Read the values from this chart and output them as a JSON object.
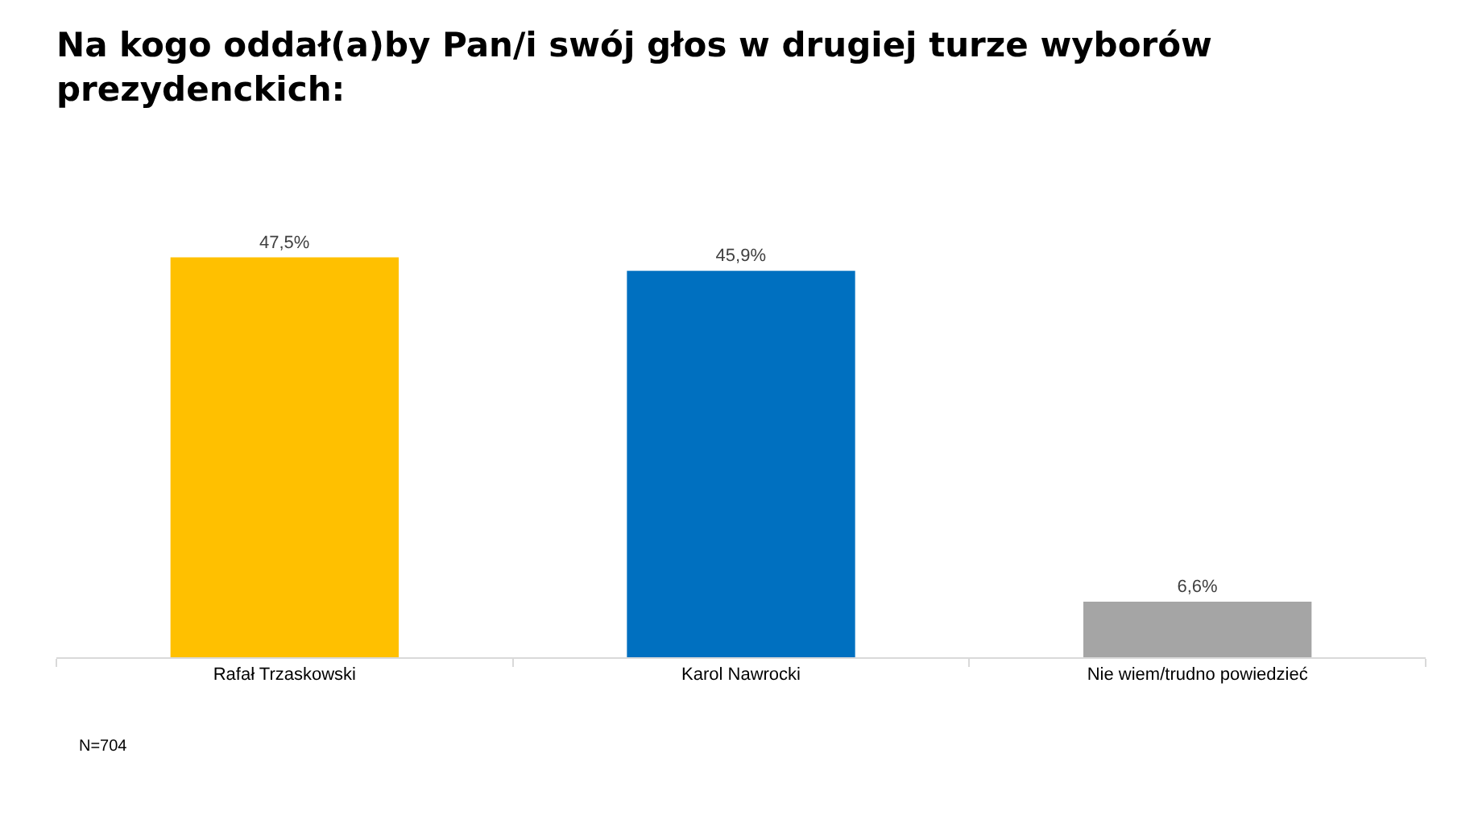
{
  "chart_data": {
    "type": "bar",
    "title": "Na kogo oddał(a)by Pan/i swój głos w drugiej turze wyborów prezydenckich:",
    "categories": [
      "Rafał Trzaskowski",
      "Karol Nawrocki",
      "Nie wiem/trudno powiedzieć"
    ],
    "values": [
      47.5,
      45.9,
      6.6
    ],
    "colors": [
      "#ffc000",
      "#0070c0",
      "#a5a5a5"
    ],
    "value_labels": [
      "47,5%",
      "45,9%",
      "6,6%"
    ],
    "annotations": [
      "N=704"
    ],
    "grid": false,
    "legend": false
  }
}
